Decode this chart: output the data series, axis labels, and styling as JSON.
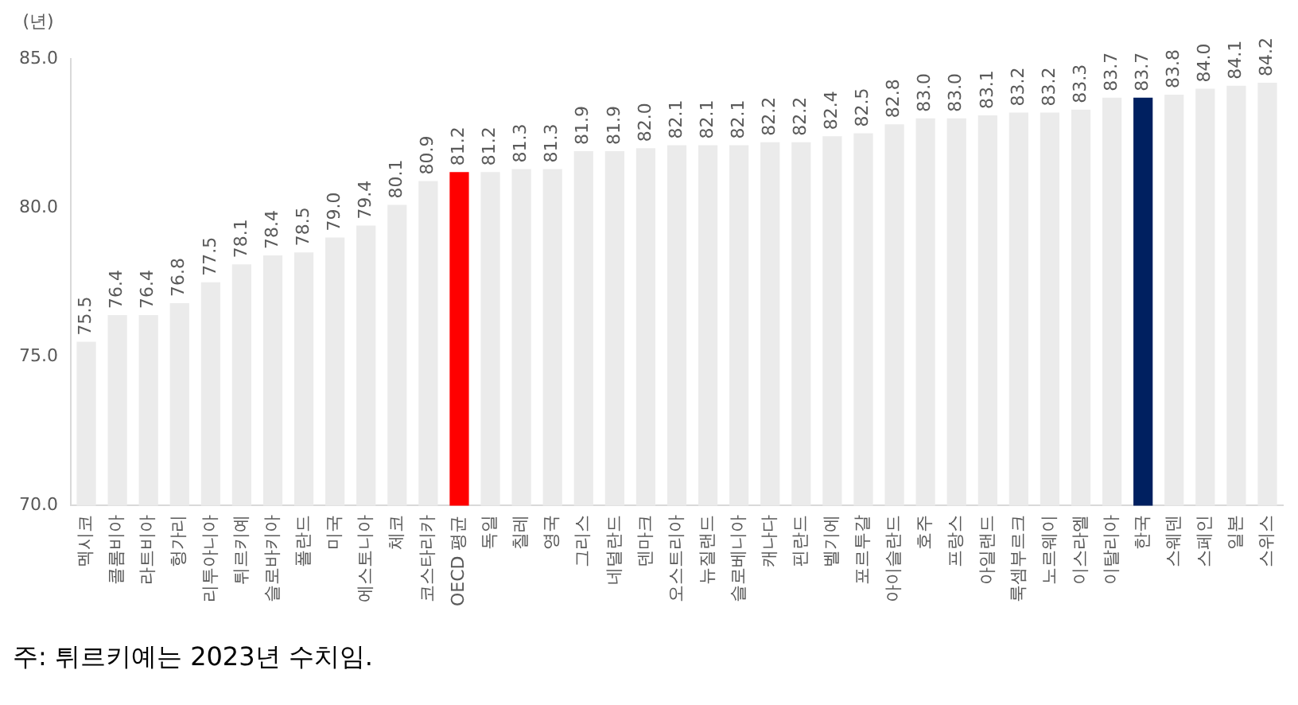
{
  "chart_data": {
    "type": "bar",
    "ylabel": "(년)",
    "categories": [
      "멕시코",
      "콜롬비아",
      "라트비아",
      "헝가리",
      "리투아니아",
      "튀르키예",
      "슬로바키아",
      "폴란드",
      "미국",
      "에스토니아",
      "체코",
      "코스타리카",
      "OECD 평균",
      "독일",
      "칠레",
      "영국",
      "그리스",
      "네덜란드",
      "덴마크",
      "오스트리아",
      "뉴질랜드",
      "슬로베니아",
      "캐나다",
      "핀란드",
      "벨기에",
      "포르투갈",
      "아이슬란드",
      "호주",
      "프랑스",
      "아일랜드",
      "룩셈부르크",
      "노르웨이",
      "이스라엘",
      "이탈리아",
      "한국",
      "스웨덴",
      "스페인",
      "일본",
      "스위스"
    ],
    "values": [
      75.5,
      76.4,
      76.4,
      76.8,
      77.5,
      78.1,
      78.4,
      78.5,
      79.0,
      79.4,
      80.1,
      80.9,
      81.2,
      81.2,
      81.3,
      81.3,
      81.9,
      81.9,
      82.0,
      82.1,
      82.1,
      82.1,
      82.2,
      82.2,
      82.4,
      82.5,
      82.8,
      83.0,
      83.0,
      83.1,
      83.2,
      83.2,
      83.3,
      83.7,
      83.7,
      83.8,
      84.0,
      84.1,
      84.2
    ],
    "value_labels": [
      "75.5",
      "76.4",
      "76.4",
      "76.8",
      "77.5",
      "78.1",
      "78.4",
      "78.5",
      "79.0",
      "79.4",
      "80.1",
      "80.9",
      "81.2",
      "81.2",
      "81.3",
      "81.3",
      "81.9",
      "81.9",
      "82.0",
      "82.1",
      "82.1",
      "82.1",
      "82.2",
      "82.2",
      "82.4",
      "82.5",
      "82.8",
      "83.0",
      "83.0",
      "83.1",
      "83.2",
      "83.2",
      "83.3",
      "83.7",
      "83.7",
      "83.8",
      "84.0",
      "84.1",
      "84.2"
    ],
    "colors": [
      "#ebebeb",
      "#ebebeb",
      "#ebebeb",
      "#ebebeb",
      "#ebebeb",
      "#ebebeb",
      "#ebebeb",
      "#ebebeb",
      "#ebebeb",
      "#ebebeb",
      "#ebebeb",
      "#ebebeb",
      "#ff0000",
      "#ebebeb",
      "#ebebeb",
      "#ebebeb",
      "#ebebeb",
      "#ebebeb",
      "#ebebeb",
      "#ebebeb",
      "#ebebeb",
      "#ebebeb",
      "#ebebeb",
      "#ebebeb",
      "#ebebeb",
      "#ebebeb",
      "#ebebeb",
      "#ebebeb",
      "#ebebeb",
      "#ebebeb",
      "#ebebeb",
      "#ebebeb",
      "#ebebeb",
      "#ebebeb",
      "#002060",
      "#ebebeb",
      "#ebebeb",
      "#ebebeb",
      "#ebebeb"
    ],
    "ylim": [
      70,
      85
    ],
    "yticks": [
      {
        "value": 70,
        "label": "70.0"
      },
      {
        "value": 75,
        "label": "75.0"
      },
      {
        "value": 80,
        "label": "80.0"
      },
      {
        "value": 85,
        "label": "85.0"
      }
    ],
    "grid": false,
    "legend": false,
    "annotations": [
      "주: 튀르키예는 2023년 수치임."
    ]
  }
}
